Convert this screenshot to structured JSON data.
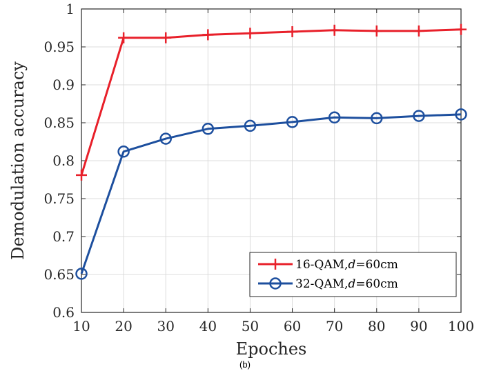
{
  "chart_data": {
    "type": "line",
    "title": "",
    "xlabel": "Epoches",
    "ylabel": "Demodulation accuracy",
    "xlim": [
      10,
      100
    ],
    "ylim": [
      0.6,
      1
    ],
    "xticks": [
      "10",
      "20",
      "30",
      "40",
      "50",
      "60",
      "70",
      "80",
      "90",
      "100"
    ],
    "yticks": [
      "0.6",
      "0.65",
      "0.7",
      "0.75",
      "0.8",
      "0.85",
      "0.9",
      "0.95",
      "1"
    ],
    "grid": true,
    "legend_position": "bottom-right",
    "x": [
      10,
      20,
      30,
      40,
      50,
      60,
      70,
      80,
      90,
      100
    ],
    "series": [
      {
        "name": "16-QAM,d=60cm",
        "label_prefix": "16-QAM,",
        "label_var": "d",
        "label_suffix": "=60cm",
        "color": "#e8202a",
        "marker": "plus",
        "values": [
          0.781,
          0.962,
          0.962,
          0.966,
          0.968,
          0.97,
          0.972,
          0.971,
          0.971,
          0.973
        ]
      },
      {
        "name": "32-QAM,d=60cm",
        "label_prefix": "32-QAM,",
        "label_var": "d",
        "label_suffix": "=60cm",
        "color": "#1d4f9e",
        "marker": "circle",
        "values": [
          0.651,
          0.812,
          0.829,
          0.842,
          0.846,
          0.851,
          0.857,
          0.856,
          0.859,
          0.861
        ]
      }
    ]
  },
  "caption": "(b)"
}
